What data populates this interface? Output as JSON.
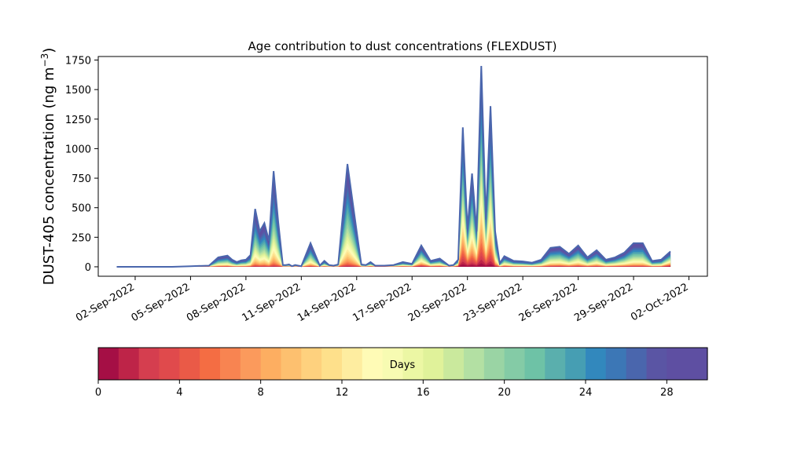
{
  "chart_data": {
    "type": "area",
    "title": "Age contribution to dust concentrations (FLEXDUST)",
    "ylabel": "DUST-405 concentration (ng m",
    "ylabel_superscript": "−3",
    "ylabel_suffix": ")",
    "xlabel": "",
    "ylim": [
      -80,
      1780
    ],
    "yticks": [
      0,
      250,
      500,
      750,
      1000,
      1250,
      1500,
      1750
    ],
    "xlim": [
      "2022-08-31",
      "2022-10-03"
    ],
    "xticks": [
      "02-Sep-2022",
      "05-Sep-2022",
      "08-Sep-2022",
      "11-Sep-2022",
      "14-Sep-2022",
      "17-Sep-2022",
      "20-Sep-2022",
      "23-Sep-2022",
      "26-Sep-2022",
      "29-Sep-2022",
      "02-Oct-2022"
    ],
    "grid": false,
    "colorbar": {
      "label": "Days",
      "min": 0,
      "max": 30,
      "ticks": [
        0,
        4,
        8,
        12,
        16,
        20,
        24,
        28
      ],
      "colormap": "Spectral",
      "colors": [
        "#a50f45",
        "#be2448",
        "#d53e4f",
        "#e04a4c",
        "#ea5a47",
        "#f46d43",
        "#f88451",
        "#fb9a5c",
        "#fdae61",
        "#fdc06f",
        "#fed17e",
        "#fee08b",
        "#feeda0",
        "#fffbb6",
        "#f7fbb2",
        "#ecf7a4",
        "#e0f29a",
        "#cae99d",
        "#b3e0a3",
        "#9ad4a4",
        "#84cba6",
        "#6ec2a6",
        "#5aafad",
        "#469eb3",
        "#3288bd",
        "#3c77b6",
        "#4a66ad",
        "#5a55a4",
        "#5e4fa2",
        "#5e4fa2"
      ]
    },
    "series": [
      {
        "x": [
          "2022-09-01T00:00",
          "2022-09-02T00:00",
          "2022-09-03T00:00",
          "2022-09-04T00:00",
          "2022-09-05T00:00",
          "2022-09-06T00:00",
          "2022-09-06T12:00",
          "2022-09-07T00:00",
          "2022-09-07T06:00",
          "2022-09-07T12:00",
          "2022-09-07T18:00",
          "2022-09-08T00:00",
          "2022-09-08T06:00",
          "2022-09-08T12:00",
          "2022-09-08T18:00",
          "2022-09-09T00:00",
          "2022-09-09T06:00",
          "2022-09-09T12:00",
          "2022-09-09T18:00",
          "2022-09-10T00:00",
          "2022-09-10T04:00",
          "2022-09-10T08:00",
          "2022-09-10T12:00",
          "2022-09-10T16:00",
          "2022-09-10T20:00",
          "2022-09-11T00:00",
          "2022-09-11T12:00",
          "2022-09-12T00:00",
          "2022-09-12T06:00",
          "2022-09-12T12:00",
          "2022-09-12T18:00",
          "2022-09-13T00:00",
          "2022-09-13T12:00",
          "2022-09-14T00:00",
          "2022-09-14T06:00",
          "2022-09-14T12:00",
          "2022-09-14T18:00",
          "2022-09-15T00:00",
          "2022-09-15T12:00",
          "2022-09-16T00:00",
          "2022-09-16T12:00",
          "2022-09-17T00:00",
          "2022-09-17T12:00",
          "2022-09-18T00:00",
          "2022-09-18T12:00",
          "2022-09-19T00:00",
          "2022-09-19T06:00",
          "2022-09-19T12:00",
          "2022-09-19T18:00",
          "2022-09-20T00:00",
          "2022-09-20T06:00",
          "2022-09-20T12:00",
          "2022-09-20T18:00",
          "2022-09-21T00:00",
          "2022-09-21T06:00",
          "2022-09-21T12:00",
          "2022-09-21T18:00",
          "2022-09-22T00:00",
          "2022-09-22T12:00",
          "2022-09-23T00:00",
          "2022-09-23T12:00",
          "2022-09-24T00:00",
          "2022-09-24T12:00",
          "2022-09-25T00:00",
          "2022-09-25T12:00",
          "2022-09-26T00:00",
          "2022-09-26T12:00",
          "2022-09-27T00:00",
          "2022-09-27T12:00",
          "2022-09-28T00:00",
          "2022-09-28T12:00",
          "2022-09-29T00:00",
          "2022-09-29T12:00",
          "2022-09-30T00:00",
          "2022-09-30T12:00",
          "2022-10-01T00:00"
        ],
        "total": [
          0,
          0,
          0,
          0,
          5,
          10,
          80,
          95,
          60,
          40,
          55,
          60,
          100,
          490,
          300,
          370,
          220,
          810,
          380,
          15,
          15,
          20,
          5,
          15,
          10,
          5,
          200,
          10,
          50,
          15,
          10,
          20,
          870,
          300,
          20,
          15,
          40,
          10,
          10,
          15,
          40,
          25,
          180,
          50,
          70,
          10,
          15,
          60,
          1180,
          320,
          790,
          300,
          1700,
          400,
          1360,
          300,
          30,
          90,
          50,
          45,
          35,
          60,
          160,
          170,
          110,
          180,
          80,
          140,
          60,
          80,
          120,
          200,
          200,
          50,
          60,
          130
        ],
        "young": [
          0,
          0,
          0,
          0,
          0,
          1,
          10,
          12,
          6,
          4,
          6,
          6,
          10,
          25,
          18,
          20,
          12,
          30,
          20,
          2,
          2,
          3,
          1,
          2,
          2,
          1,
          15,
          2,
          6,
          2,
          1,
          3,
          40,
          15,
          2,
          2,
          10,
          2,
          2,
          3,
          10,
          5,
          60,
          15,
          20,
          3,
          5,
          30,
          650,
          220,
          430,
          200,
          900,
          250,
          700,
          60,
          5,
          20,
          10,
          8,
          6,
          10,
          25,
          30,
          20,
          30,
          15,
          25,
          10,
          15,
          20,
          20,
          20,
          8,
          10,
          70
        ]
      }
    ]
  }
}
